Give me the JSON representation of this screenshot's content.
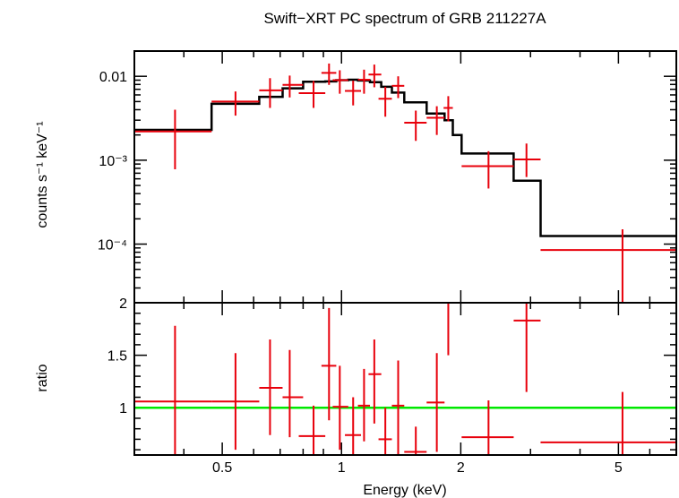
{
  "chart_data": [
    {
      "type": "scatter",
      "title": "Swift−XRT PC spectrum of GRB 211227A",
      "ylabel": "counts s⁻¹ keV⁻¹",
      "xscale": "log",
      "yscale": "log",
      "xlim": [
        0.3,
        7.0
      ],
      "ylim": [
        2e-05,
        0.02
      ],
      "ytick_labels": [
        "0.01",
        "10⁻³",
        "10⁻⁴"
      ],
      "series": [
        {
          "name": "data",
          "color": "#e8000b",
          "points": [
            {
              "x": 0.38,
              "xerr": [
                0.3,
                0.47
              ],
              "y": 0.0022,
              "yerr": [
                0.00078,
                0.004
              ]
            },
            {
              "x": 0.54,
              "xerr": [
                0.47,
                0.62
              ],
              "y": 0.005,
              "yerr": [
                0.0034,
                0.0066
              ]
            },
            {
              "x": 0.66,
              "xerr": [
                0.62,
                0.71
              ],
              "y": 0.0068,
              "yerr": [
                0.0042,
                0.0095
              ]
            },
            {
              "x": 0.74,
              "xerr": [
                0.71,
                0.8
              ],
              "y": 0.0079,
              "yerr": [
                0.0056,
                0.0102
              ]
            },
            {
              "x": 0.85,
              "xerr": [
                0.78,
                0.91
              ],
              "y": 0.0063,
              "yerr": [
                0.0042,
                0.0088
              ]
            },
            {
              "x": 0.93,
              "xerr": [
                0.89,
                0.97
              ],
              "y": 0.011,
              "yerr": [
                0.0079,
                0.0142
              ]
            },
            {
              "x": 0.99,
              "xerr": [
                0.95,
                1.04
              ],
              "y": 0.009,
              "yerr": [
                0.0062,
                0.0118
              ]
            },
            {
              "x": 1.07,
              "xerr": [
                1.02,
                1.12
              ],
              "y": 0.0067,
              "yerr": [
                0.0045,
                0.0089
              ]
            },
            {
              "x": 1.14,
              "xerr": [
                1.1,
                1.18
              ],
              "y": 0.0091,
              "yerr": [
                0.0062,
                0.012
              ]
            },
            {
              "x": 1.21,
              "xerr": [
                1.17,
                1.26
              ],
              "y": 0.0105,
              "yerr": [
                0.0074,
                0.0138
              ]
            },
            {
              "x": 1.29,
              "xerr": [
                1.24,
                1.34
              ],
              "y": 0.0054,
              "yerr": [
                0.0033,
                0.0075
              ]
            },
            {
              "x": 1.39,
              "xerr": [
                1.34,
                1.44
              ],
              "y": 0.0077,
              "yerr": [
                0.0055,
                0.01
              ]
            },
            {
              "x": 1.54,
              "xerr": [
                1.44,
                1.64
              ],
              "y": 0.0028,
              "yerr": [
                0.0017,
                0.0039
              ]
            },
            {
              "x": 1.74,
              "xerr": [
                1.64,
                1.82
              ],
              "y": 0.0032,
              "yerr": [
                0.002,
                0.0044
              ]
            },
            {
              "x": 1.86,
              "xerr": [
                1.81,
                1.91
              ],
              "y": 0.0042,
              "yerr": [
                0.0029,
                0.0058
              ]
            },
            {
              "x": 2.35,
              "xerr": [
                2.01,
                2.72
              ],
              "y": 0.00085,
              "yerr": [
                0.00046,
                0.00128
              ]
            },
            {
              "x": 2.93,
              "xerr": [
                2.72,
                3.18
              ],
              "y": 0.00102,
              "yerr": [
                0.00063,
                0.00158
              ]
            },
            {
              "x": 5.12,
              "xerr": [
                3.18,
                7.0
              ],
              "y": 8.5e-05,
              "yerr": [
                2e-05,
                0.00015
              ]
            }
          ]
        },
        {
          "name": "model",
          "color": "#000000",
          "step_edges": [
            0.3,
            0.47,
            0.62,
            0.71,
            0.8,
            0.91,
            0.97,
            1.04,
            1.1,
            1.18,
            1.26,
            1.34,
            1.44,
            1.64,
            1.82,
            1.91,
            2.01,
            2.72,
            3.18,
            7.0
          ],
          "step_values": [
            0.0023,
            0.0047,
            0.0057,
            0.0072,
            0.0086,
            0.0087,
            0.009,
            0.0091,
            0.0089,
            0.0085,
            0.0075,
            0.0064,
            0.0049,
            0.0036,
            0.003,
            0.002,
            0.0012,
            0.00057,
            0.000125
          ]
        }
      ]
    },
    {
      "type": "scatter",
      "ylabel": "ratio",
      "xlabel": "Energy (keV)",
      "xscale": "log",
      "ylim": [
        0.55,
        2.0
      ],
      "ytick_labels": [
        "1",
        "1.5",
        "2"
      ],
      "xtick_labels": [
        "0.5",
        "1",
        "2",
        "5"
      ],
      "reference_line": {
        "y": 1,
        "color": "#00e800"
      },
      "series": [
        {
          "name": "ratio",
          "color": "#e8000b",
          "points": [
            {
              "x": 0.38,
              "xerr": [
                0.3,
                0.47
              ],
              "y": 1.06,
              "yerr": [
                0.55,
                1.78
              ]
            },
            {
              "x": 0.54,
              "xerr": [
                0.47,
                0.62
              ],
              "y": 1.06,
              "yerr": [
                0.6,
                1.52
              ]
            },
            {
              "x": 0.66,
              "xerr": [
                0.62,
                0.71
              ],
              "y": 1.19,
              "yerr": [
                0.74,
                1.65
              ]
            },
            {
              "x": 0.74,
              "xerr": [
                0.71,
                0.8
              ],
              "y": 1.1,
              "yerr": [
                0.72,
                1.55
              ]
            },
            {
              "x": 0.85,
              "xerr": [
                0.78,
                0.91
              ],
              "y": 0.73,
              "yerr": [
                0.55,
                1.02
              ]
            },
            {
              "x": 0.93,
              "xerr": [
                0.89,
                0.97
              ],
              "y": 1.4,
              "yerr": [
                0.88,
                1.95
              ]
            },
            {
              "x": 0.99,
              "xerr": [
                0.95,
                1.04
              ],
              "y": 1.01,
              "yerr": [
                0.6,
                1.4
              ]
            },
            {
              "x": 1.07,
              "xerr": [
                1.02,
                1.12
              ],
              "y": 0.74,
              "yerr": [
                0.55,
                1.1
              ]
            },
            {
              "x": 1.14,
              "xerr": [
                1.1,
                1.18
              ],
              "y": 1.02,
              "yerr": [
                0.68,
                1.37
              ]
            },
            {
              "x": 1.21,
              "xerr": [
                1.17,
                1.26
              ],
              "y": 1.32,
              "yerr": [
                0.85,
                1.65
              ]
            },
            {
              "x": 1.29,
              "xerr": [
                1.24,
                1.34
              ],
              "y": 0.7,
              "yerr": [
                0.55,
                1.0
              ]
            },
            {
              "x": 1.39,
              "xerr": [
                1.34,
                1.44
              ],
              "y": 1.02,
              "yerr": [
                0.55,
                1.45
              ]
            },
            {
              "x": 1.54,
              "xerr": [
                1.44,
                1.64
              ],
              "y": 0.58,
              "yerr": [
                0.55,
                0.82
              ]
            },
            {
              "x": 1.74,
              "xerr": [
                1.64,
                1.82
              ],
              "y": 1.05,
              "yerr": [
                0.58,
                1.52
              ]
            },
            {
              "x": 1.86,
              "xerr": [
                1.81,
                1.91
              ],
              "y": 2.0,
              "yerr": [
                1.5,
                2.0
              ]
            },
            {
              "x": 2.35,
              "xerr": [
                2.01,
                2.72
              ],
              "y": 0.72,
              "yerr": [
                0.55,
                1.07
              ]
            },
            {
              "x": 2.93,
              "xerr": [
                2.72,
                3.18
              ],
              "y": 1.83,
              "yerr": [
                1.15,
                2.0
              ]
            },
            {
              "x": 5.12,
              "xerr": [
                3.18,
                7.0
              ],
              "y": 0.67,
              "yerr": [
                0.55,
                1.15
              ]
            }
          ]
        }
      ]
    }
  ]
}
